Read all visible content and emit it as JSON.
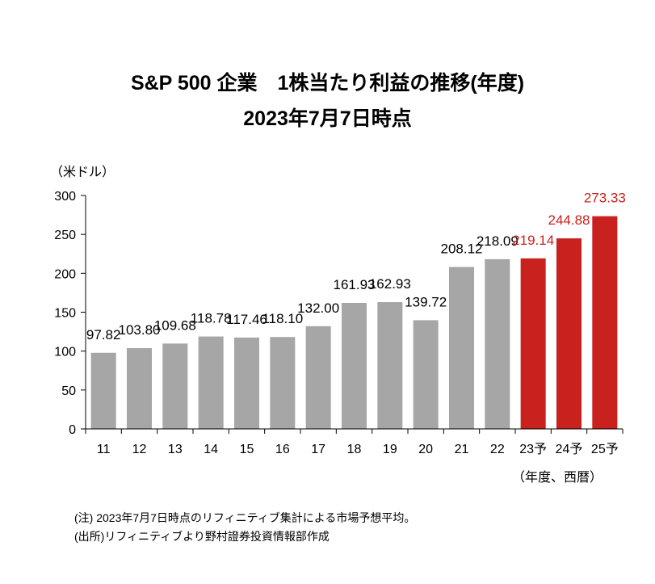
{
  "title_line1": "S&P 500 企業　1株当たり利益の推移(年度)",
  "title_line2": "2023年7月7日時点",
  "notes": [
    "(注) 2023年7月7日時点のリフィニティブ集計による市場予想平均。",
    "(出所)リフィニティブより野村證券投資情報部作成"
  ],
  "colors": {
    "actual": "#a6a6a6",
    "forecast": "#c9211e",
    "forecast_label": "#c9211e",
    "axis": "#000000"
  },
  "chart_data": {
    "type": "bar",
    "title": "S&P 500 企業　1株当たり利益の推移(年度)",
    "subtitle": "2023年7月7日時点",
    "ylabel": "（米ドル）",
    "xlabel": "（年度、西暦）",
    "ylim": [
      0,
      300
    ],
    "yticks": [
      0,
      50,
      100,
      150,
      200,
      250,
      300
    ],
    "grid": false,
    "categories": [
      "11",
      "12",
      "13",
      "14",
      "15",
      "16",
      "17",
      "18",
      "19",
      "20",
      "21",
      "22",
      "23予",
      "24予",
      "25予"
    ],
    "value_labels": [
      "97.82",
      "103.80",
      "109.68",
      "118.78",
      "117.46",
      "118.10",
      "132.00",
      "161.93",
      "162.93",
      "139.72",
      "208.12",
      "218.09",
      "219.14",
      "244.88",
      "273.33"
    ],
    "values": [
      97.82,
      103.8,
      109.68,
      118.78,
      117.46,
      118.1,
      132.0,
      161.93,
      162.93,
      139.72,
      208.12,
      218.09,
      219.14,
      244.88,
      273.33
    ],
    "forecast": [
      false,
      false,
      false,
      false,
      false,
      false,
      false,
      false,
      false,
      false,
      false,
      false,
      true,
      true,
      true
    ]
  }
}
